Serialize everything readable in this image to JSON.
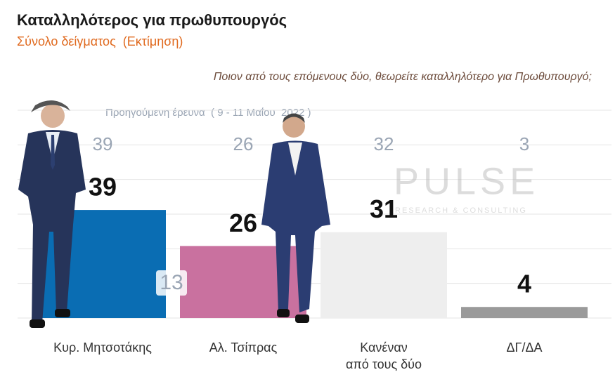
{
  "chart_data": {
    "type": "bar",
    "title": "Καταλληλότερος για πρωθυπουργός",
    "subtitle": "Σύνολο δείγματος  (Εκτίμηση)",
    "question": "Ποιον από τους επόμενους δύο, θεωρείτε καταλληλότερο για Πρωθυπουργό;",
    "previous_label": "Προηγούμενη έρευνα  ( 9 - 11 Μαΐου  2022 )",
    "categories": [
      "Κυρ. Μητσοτάκης",
      "Αλ. Τσίπρας",
      "Κανέναν\nαπό τους δύο",
      "ΔΓ/ΔΑ"
    ],
    "values": [
      39,
      26,
      31,
      4
    ],
    "previous_values": [
      39,
      26,
      32,
      3
    ],
    "colors": [
      "#0a6db3",
      "#c9719f",
      "#eeeeee",
      "#9a9a9a"
    ],
    "annotation": "13",
    "watermark": "PULSE",
    "watermark_sub": "RESEARCH & CONSULTING",
    "ylim": [
      0,
      75
    ],
    "yticks": [
      0,
      12.5,
      25,
      37.5,
      50,
      62.5,
      75
    ],
    "grid": true
  }
}
